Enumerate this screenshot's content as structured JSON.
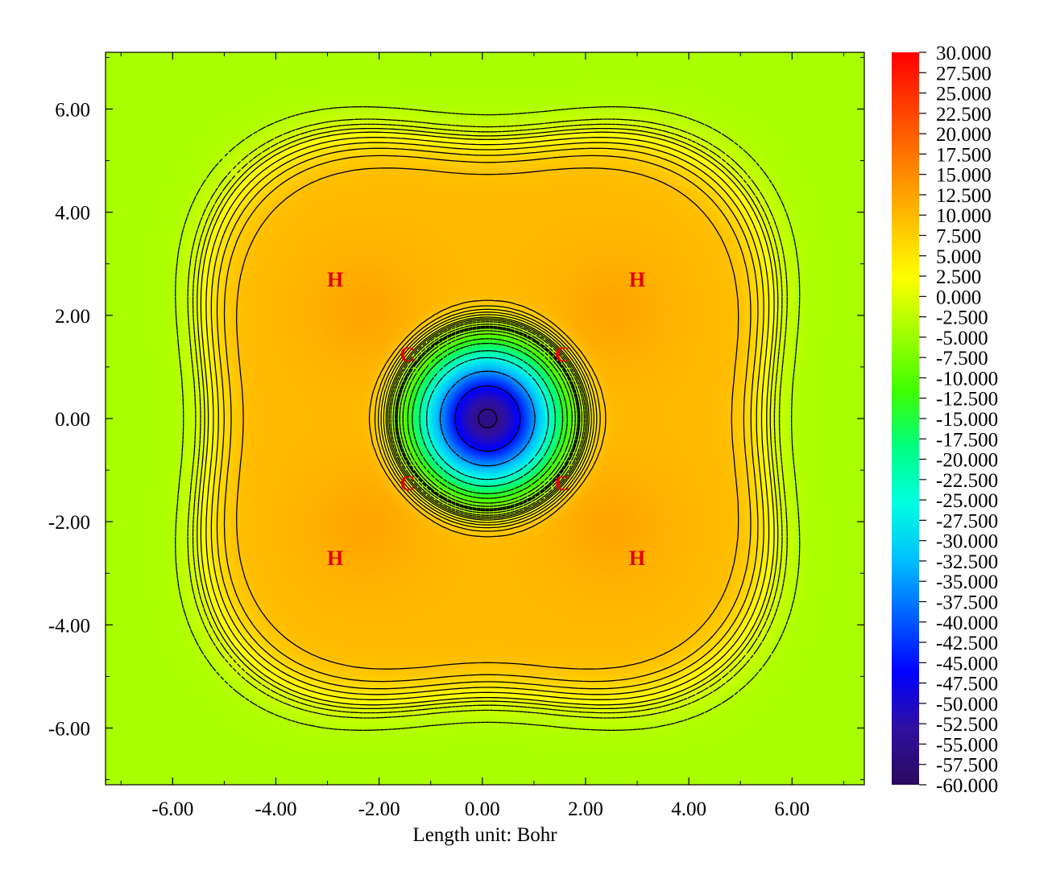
{
  "chart_data": {
    "type": "heatmap",
    "subtype": "filled contour map with isolines",
    "title": "",
    "xlabel": "Length unit: Bohr",
    "ylabel": "",
    "xlim": [
      -7.3,
      7.4
    ],
    "ylim": [
      -7.1,
      7.1
    ],
    "x_ticks": [
      -6,
      -4,
      -2,
      0,
      2,
      4,
      6
    ],
    "y_ticks": [
      -6,
      -4,
      -2,
      0,
      2,
      4,
      6
    ],
    "x_tick_labels": [
      "-6.00",
      "-4.00",
      "-2.00",
      "0.00",
      "2.00",
      "4.00",
      "6.00"
    ],
    "y_tick_labels": [
      "6.00",
      "4.00",
      "2.00",
      "0.00",
      "-2.00",
      "-4.00",
      "-6.00"
    ],
    "colorbar": {
      "min": -60,
      "max": 30,
      "labels": [
        "30.000",
        "27.500",
        "25.000",
        "22.500",
        "20.000",
        "17.500",
        "15.000",
        "12.500",
        "10.000",
        "7.500",
        "5.000",
        "2.500",
        "0.000",
        "-2.500",
        "-5.000",
        "-7.500",
        "-10.000",
        "-12.500",
        "-15.000",
        "-17.500",
        "-20.000",
        "-22.500",
        "-25.000",
        "-27.500",
        "-30.000",
        "-32.500",
        "-35.000",
        "-37.500",
        "-40.000",
        "-42.500",
        "-45.000",
        "-47.500",
        "-50.000",
        "-52.500",
        "-55.000",
        "-57.500",
        "-60.000"
      ],
      "colormap": [
        "#2a0a5e",
        "#3010a0",
        "#0000ff",
        "#0060ff",
        "#00c0ff",
        "#00ffe0",
        "#00ff80",
        "#40ff00",
        "#a0ff00",
        "#ffff00",
        "#ffc000",
        "#ff8000",
        "#ff4000",
        "#ff0000"
      ]
    },
    "atoms": [
      {
        "label": "H",
        "x": -2.85,
        "y": 2.7
      },
      {
        "label": "H",
        "x": 3.0,
        "y": 2.7
      },
      {
        "label": "C",
        "x": -1.45,
        "y": 1.25
      },
      {
        "label": "C",
        "x": 1.55,
        "y": 1.25
      },
      {
        "label": "C",
        "x": -1.45,
        "y": -1.25
      },
      {
        "label": "C",
        "x": 1.55,
        "y": -1.25
      },
      {
        "label": "H",
        "x": -2.85,
        "y": -2.7
      },
      {
        "label": "H",
        "x": 3.0,
        "y": -2.7
      }
    ],
    "field_features": {
      "background_value": -4.0,
      "central_minimum": {
        "x": 0.1,
        "y": 0.0,
        "value": -60.0
      },
      "local_maxima": [
        {
          "x": -2.3,
          "y": 2.1,
          "value": 12.0
        },
        {
          "x": 2.5,
          "y": 2.1,
          "value": 12.0
        },
        {
          "x": -2.3,
          "y": -2.1,
          "value": 12.0
        },
        {
          "x": 2.5,
          "y": -2.1,
          "value": 12.0
        }
      ]
    }
  }
}
